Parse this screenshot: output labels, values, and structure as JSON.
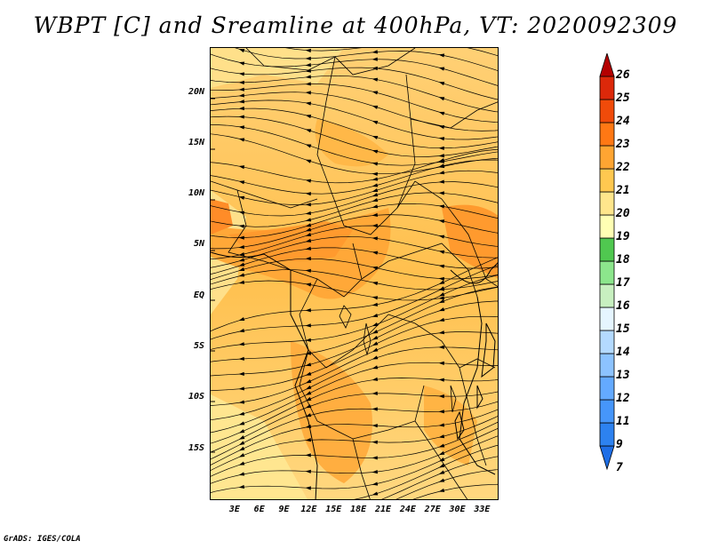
{
  "title": "WBPT [C] and Sreamline at 400hPa, VT: 2020092309",
  "credit": "GrADS: IGES/COLA",
  "map": {
    "lat_labels": [
      "20N",
      "15N",
      "10N",
      "5N",
      "EQ",
      "5S",
      "10S",
      "15S"
    ],
    "lat_values": [
      20,
      15,
      10,
      5,
      0,
      -5,
      -10,
      -15
    ],
    "lon_labels": [
      "3E",
      "6E",
      "9E",
      "12E",
      "15E",
      "18E",
      "21E",
      "24E",
      "27E",
      "30E",
      "33E"
    ],
    "lon_values": [
      3,
      6,
      9,
      12,
      15,
      18,
      21,
      24,
      27,
      30,
      33
    ],
    "lat_range": [
      -20,
      24.5
    ],
    "lon_range": [
      0,
      35
    ]
  },
  "colorbar": {
    "labels": [
      "7",
      "9",
      "11",
      "12",
      "13",
      "14",
      "15",
      "16",
      "17",
      "18",
      "19",
      "20",
      "21",
      "22",
      "23",
      "24",
      "25",
      "26"
    ],
    "colors": [
      "#1e6ee6",
      "#2d82f0",
      "#4696fa",
      "#64aaff",
      "#8cc3ff",
      "#b4daff",
      "#e6f5ff",
      "#c8f0c0",
      "#8ce68c",
      "#50c850",
      "#ffffb4",
      "#ffe68c",
      "#ffc850",
      "#ffa532",
      "#ff7814",
      "#f04b0a",
      "#dc280a",
      "#b40000"
    ]
  }
}
